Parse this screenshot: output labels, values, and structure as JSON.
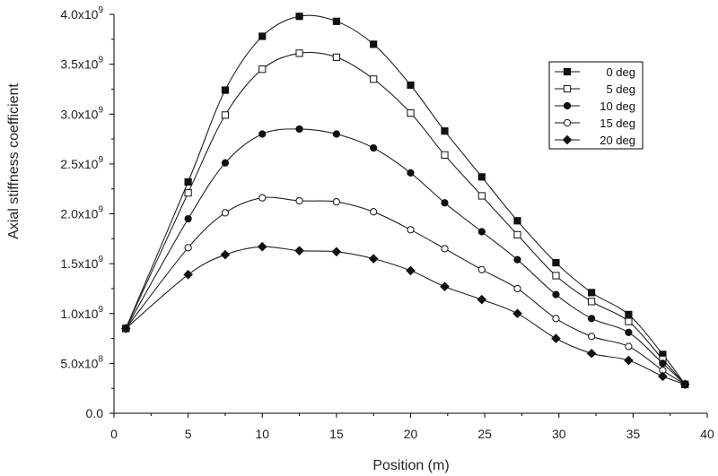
{
  "chart_data": {
    "type": "line",
    "xlabel": "Position (m)",
    "ylabel": "Axial stiffness coefficient",
    "xlim": [
      0,
      40
    ],
    "ylim": [
      0,
      4000000000
    ],
    "x_ticks": [
      0,
      5,
      10,
      15,
      20,
      25,
      30,
      35,
      40
    ],
    "x_tick_labels": [
      "0",
      "5",
      "10",
      "15",
      "20",
      "25",
      "30",
      "35",
      "40"
    ],
    "y_ticks": [
      0,
      500000000,
      1000000000,
      1500000000,
      2000000000,
      2500000000,
      3000000000,
      3500000000,
      4000000000
    ],
    "y_tick_labels": [
      {
        "base": "0.0",
        "exp": ""
      },
      {
        "base": "5.0x10",
        "exp": "8"
      },
      {
        "base": "1.0x10",
        "exp": "9"
      },
      {
        "base": "1.5x10",
        "exp": "9"
      },
      {
        "base": "2.0x10",
        "exp": "9"
      },
      {
        "base": "2.5x10",
        "exp": "9"
      },
      {
        "base": "3.0x10",
        "exp": "9"
      },
      {
        "base": "3.5x10",
        "exp": "9"
      },
      {
        "base": "4.0x10",
        "exp": "9"
      }
    ],
    "grid": false,
    "legend_position": "top-right",
    "x": [
      0.8,
      5.0,
      7.5,
      10.0,
      12.5,
      15.0,
      17.5,
      20.0,
      22.3,
      24.8,
      27.2,
      29.8,
      32.2,
      34.7,
      37.0,
      38.5
    ],
    "series": [
      {
        "name": "0 deg",
        "marker": "square-filled",
        "values": [
          850000000,
          2320000000,
          3240000000,
          3780000000,
          3980000000,
          3930000000,
          3700000000,
          3290000000,
          2830000000,
          2370000000,
          1930000000,
          1510000000,
          1210000000,
          990000000,
          590000000,
          290000000
        ]
      },
      {
        "name": "5 deg",
        "marker": "square-open",
        "values": [
          850000000,
          2210000000,
          2990000000,
          3450000000,
          3610000000,
          3570000000,
          3350000000,
          3010000000,
          2590000000,
          2180000000,
          1790000000,
          1380000000,
          1120000000,
          920000000,
          540000000,
          290000000
        ]
      },
      {
        "name": "10 deg",
        "marker": "circle-filled",
        "values": [
          850000000,
          1950000000,
          2510000000,
          2800000000,
          2850000000,
          2800000000,
          2660000000,
          2410000000,
          2110000000,
          1820000000,
          1540000000,
          1190000000,
          950000000,
          810000000,
          500000000,
          290000000
        ]
      },
      {
        "name": "15 deg",
        "marker": "circle-open",
        "values": [
          850000000,
          1660000000,
          2010000000,
          2160000000,
          2130000000,
          2120000000,
          2020000000,
          1840000000,
          1650000000,
          1440000000,
          1250000000,
          950000000,
          770000000,
          670000000,
          430000000,
          290000000
        ]
      },
      {
        "name": "20 deg",
        "marker": "diamond-filled",
        "values": [
          850000000,
          1390000000,
          1590000000,
          1670000000,
          1630000000,
          1620000000,
          1550000000,
          1430000000,
          1270000000,
          1140000000,
          1000000000,
          750000000,
          600000000,
          530000000,
          370000000,
          290000000
        ]
      }
    ]
  }
}
